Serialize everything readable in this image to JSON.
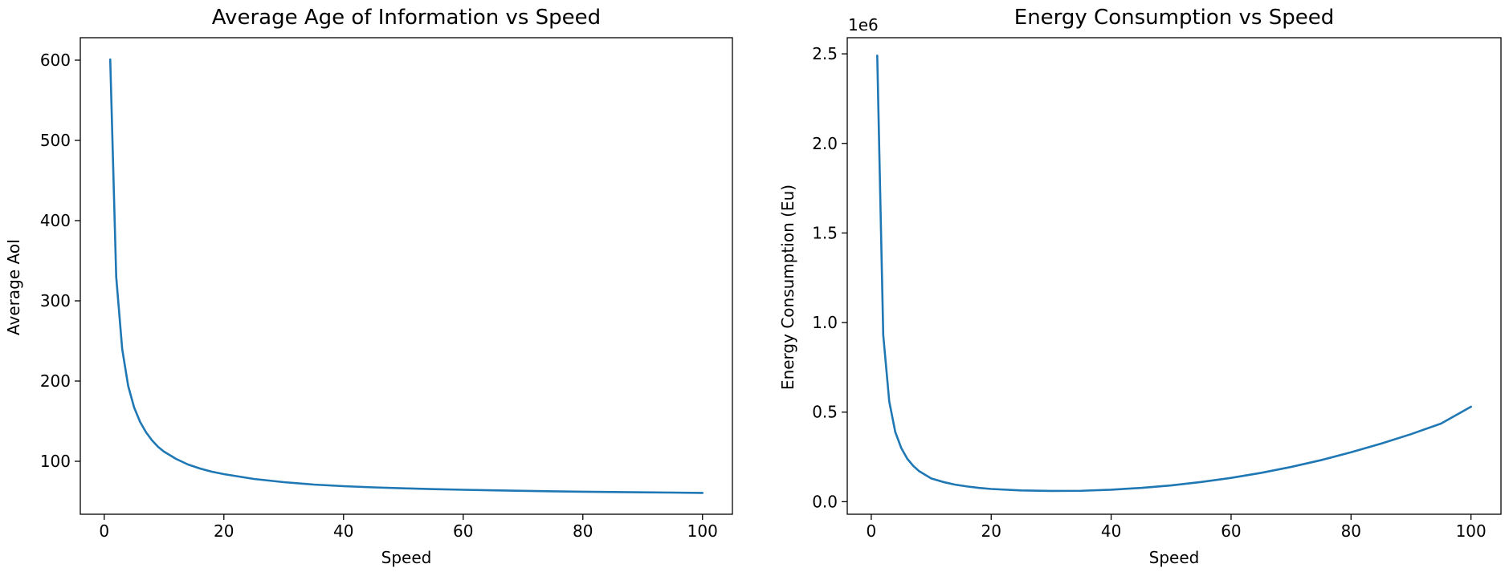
{
  "chart_data": [
    {
      "type": "line",
      "title": "Average Age of Information vs Speed",
      "xlabel": "Speed",
      "ylabel": "Average AoI",
      "xlim": [
        -4,
        105
      ],
      "ylim": [
        34,
        628
      ],
      "xticks": [
        0,
        20,
        40,
        60,
        80,
        100
      ],
      "xtick_labels": [
        "0",
        "20",
        "40",
        "60",
        "80",
        "100"
      ],
      "yticks": [
        100,
        200,
        300,
        400,
        500,
        600
      ],
      "ytick_labels": [
        "100",
        "200",
        "300",
        "400",
        "500",
        "600"
      ],
      "offset_text": "",
      "grid": false,
      "color": "#1f77b4",
      "series": [
        {
          "x": [
            1,
            2,
            3,
            4,
            5,
            6,
            7,
            8,
            9,
            10,
            12,
            14,
            16,
            18,
            20,
            25,
            30,
            35,
            40,
            45,
            50,
            55,
            60,
            65,
            70,
            75,
            80,
            85,
            90,
            95,
            100
          ],
          "y": [
            601,
            330,
            240,
            194,
            167,
            149,
            136,
            126,
            118,
            112,
            103,
            96,
            91,
            87,
            84,
            78,
            74,
            71,
            69,
            67.5,
            66.3,
            65.3,
            64.5,
            63.8,
            63.2,
            62.6,
            62.1,
            61.7,
            61.3,
            61.0,
            60.6
          ]
        }
      ]
    },
    {
      "type": "line",
      "title": "Energy Consumption vs Speed",
      "xlabel": "Speed",
      "ylabel": "Energy Consumption (Eu)",
      "xlim": [
        -4,
        105
      ],
      "ylim": [
        -0.07,
        2.59
      ],
      "xticks": [
        0,
        20,
        40,
        60,
        80,
        100
      ],
      "xtick_labels": [
        "0",
        "20",
        "40",
        "60",
        "80",
        "100"
      ],
      "yticks": [
        0.0,
        0.5,
        1.0,
        1.5,
        2.0,
        2.5
      ],
      "ytick_labels": [
        "0.0",
        "0.5",
        "1.0",
        "1.5",
        "2.0",
        "2.5"
      ],
      "offset_text": "1e6",
      "grid": false,
      "color": "#1f77b4",
      "series": [
        {
          "x": [
            1,
            2,
            3,
            4,
            5,
            6,
            7,
            8,
            9,
            10,
            12,
            14,
            16,
            18,
            20,
            25,
            30,
            35,
            40,
            45,
            50,
            55,
            60,
            65,
            70,
            75,
            80,
            85,
            90,
            95,
            100
          ],
          "y": [
            2.49,
            0.93,
            0.56,
            0.39,
            0.3,
            0.24,
            0.2,
            0.17,
            0.15,
            0.13,
            0.11,
            0.095,
            0.085,
            0.077,
            0.071,
            0.063,
            0.06,
            0.061,
            0.067,
            0.077,
            0.091,
            0.11,
            0.133,
            0.161,
            0.194,
            0.232,
            0.276,
            0.324,
            0.377,
            0.436,
            0.53
          ]
        }
      ]
    }
  ]
}
